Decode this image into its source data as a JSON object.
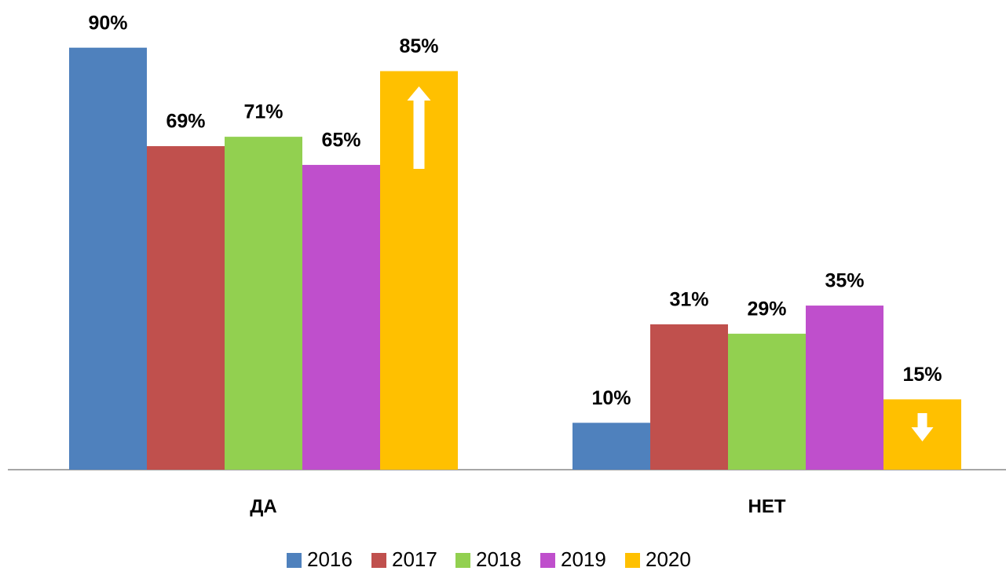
{
  "chart_data": {
    "type": "bar",
    "categories": [
      "ДА",
      "НЕТ"
    ],
    "series": [
      {
        "name": "2016",
        "color": "#4f81bd",
        "values": [
          90,
          10
        ],
        "value_labels": [
          "90%",
          "10%"
        ]
      },
      {
        "name": "2017",
        "color": "#c0504d",
        "values": [
          69,
          31
        ],
        "value_labels": [
          "69%",
          "31%"
        ]
      },
      {
        "name": "2018",
        "color": "#92d050",
        "values": [
          71,
          29
        ],
        "value_labels": [
          "71%",
          "29%"
        ]
      },
      {
        "name": "2019",
        "color": "#bf4fcc",
        "values": [
          65,
          35
        ],
        "value_labels": [
          "65%",
          "35%"
        ]
      },
      {
        "name": "2020",
        "color": "#ffc000",
        "values": [
          85,
          15
        ],
        "value_labels": [
          "85%",
          "15%"
        ]
      }
    ],
    "ylim": [
      0,
      100
    ]
  }
}
